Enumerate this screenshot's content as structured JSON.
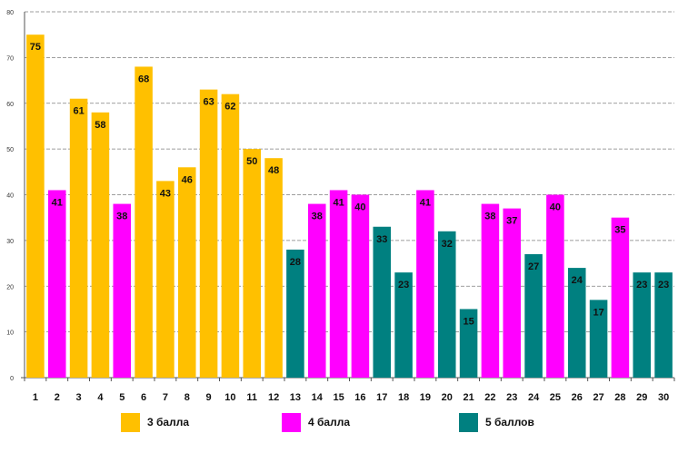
{
  "chart_data": {
    "type": "bar",
    "title": "",
    "xlabel": "",
    "ylabel": "",
    "ylim": [
      0,
      80
    ],
    "yticks": [
      "0",
      "10",
      "20",
      "30",
      "40",
      "50",
      "60",
      "70",
      "80"
    ],
    "grid": true,
    "legend_position": "bottom",
    "categories": [
      "1",
      "2",
      "3",
      "4",
      "5",
      "6",
      "7",
      "8",
      "9",
      "10",
      "11",
      "12",
      "13",
      "14",
      "15",
      "16",
      "17",
      "18",
      "19",
      "20",
      "21",
      "22",
      "23",
      "24",
      "25",
      "26",
      "27",
      "28",
      "29",
      "30"
    ],
    "values": [
      75,
      41,
      61,
      58,
      38,
      68,
      43,
      46,
      63,
      62,
      50,
      48,
      28,
      38,
      41,
      40,
      33,
      23,
      41,
      32,
      15,
      38,
      37,
      27,
      40,
      24,
      17,
      35,
      23,
      23
    ],
    "value_labels": [
      "75",
      "41",
      "61",
      "58",
      "38",
      "68",
      "43",
      "46",
      "63",
      "62",
      "50",
      "48",
      "28",
      "38",
      "41",
      "40",
      "33",
      "23",
      "41",
      "32",
      "15",
      "38",
      "37",
      "27",
      "40",
      "24",
      "17",
      "35",
      "23",
      "23"
    ],
    "groups": [
      0,
      1,
      0,
      0,
      1,
      0,
      0,
      0,
      0,
      0,
      0,
      0,
      2,
      1,
      1,
      1,
      2,
      2,
      1,
      2,
      2,
      1,
      1,
      2,
      1,
      2,
      2,
      1,
      2,
      2
    ],
    "series": [
      {
        "name": "3 балла",
        "color": "#FFC000"
      },
      {
        "name": "4 балла",
        "color": "#FF00FF"
      },
      {
        "name": "5 баллов",
        "color": "#008080"
      }
    ]
  }
}
